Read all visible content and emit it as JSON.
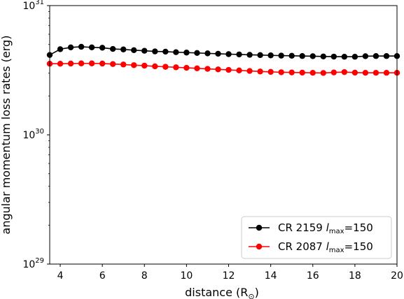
{
  "chart_data": {
    "type": "line",
    "xlabel": "distance (R",
    "xlabel_sub": "⊙",
    "xlabel_close": ")",
    "ylabel": "angular momentum loss rates (erg)",
    "xlim": [
      3.5,
      20
    ],
    "ylim": [
      1e+29,
      1e+31
    ],
    "yscale": "log",
    "x_ticks": [
      4,
      6,
      8,
      10,
      12,
      14,
      16,
      18,
      20
    ],
    "y_ticks": [
      {
        "value": 1e+29,
        "base": "10",
        "exp": "29"
      },
      {
        "value": 1e+30,
        "base": "10",
        "exp": "30"
      },
      {
        "value": 1e+31,
        "base": "10",
        "exp": "31"
      }
    ],
    "grid": false,
    "legend_position": "lower-right",
    "x": [
      3.5,
      4.0,
      4.5,
      5.0,
      5.5,
      6.0,
      6.5,
      7.0,
      7.5,
      8.0,
      8.5,
      9.0,
      9.5,
      10.0,
      10.5,
      11.0,
      11.5,
      12.0,
      12.5,
      13.0,
      13.5,
      14.0,
      14.5,
      15.0,
      15.5,
      16.0,
      16.5,
      17.0,
      17.5,
      18.0,
      18.5,
      19.0,
      19.5,
      20.0
    ],
    "series": [
      {
        "name": "CR 2159",
        "legend_suffix": "=150",
        "legend_l": "l",
        "legend_sub": "max",
        "color": "#000000",
        "values": [
          4.15e+30,
          4.6e+30,
          4.75e+30,
          4.8e+30,
          4.75e+30,
          4.72e+30,
          4.62e+30,
          4.58e+30,
          4.52e+30,
          4.47e+30,
          4.42e+30,
          4.4e+30,
          4.36e+30,
          4.33e+30,
          4.3e+30,
          4.27e+30,
          4.24e+30,
          4.21e+30,
          4.19e+30,
          4.16e+30,
          4.14e+30,
          4.12e+30,
          4.1e+30,
          4.09e+30,
          4.07e+30,
          4.06e+30,
          4.04e+30,
          4.03e+30,
          4.02e+30,
          4.02e+30,
          4.06e+30,
          4.07e+30,
          4.07e+30,
          4.07e+30
        ]
      },
      {
        "name": "CR 2087",
        "legend_suffix": "=150",
        "legend_l": "l",
        "legend_sub": "max",
        "color": "#ff0000",
        "values": [
          3.55e+30,
          3.55e+30,
          3.56e+30,
          3.57e+30,
          3.57e+30,
          3.56e+30,
          3.53e+30,
          3.5e+30,
          3.46e+30,
          3.43e+30,
          3.39e+30,
          3.36e+30,
          3.33e+30,
          3.3e+30,
          3.27e+30,
          3.24e+30,
          3.21e+30,
          3.18e+30,
          3.15e+30,
          3.12e+30,
          3.09e+30,
          3.07e+30,
          3.05e+30,
          3.04e+30,
          3.03e+30,
          3.02e+30,
          3.01e+30,
          3.04e+30,
          3.06e+30,
          3.03e+30,
          3.02e+30,
          3.02e+30,
          3.02e+30,
          3.02e+30
        ]
      }
    ]
  }
}
